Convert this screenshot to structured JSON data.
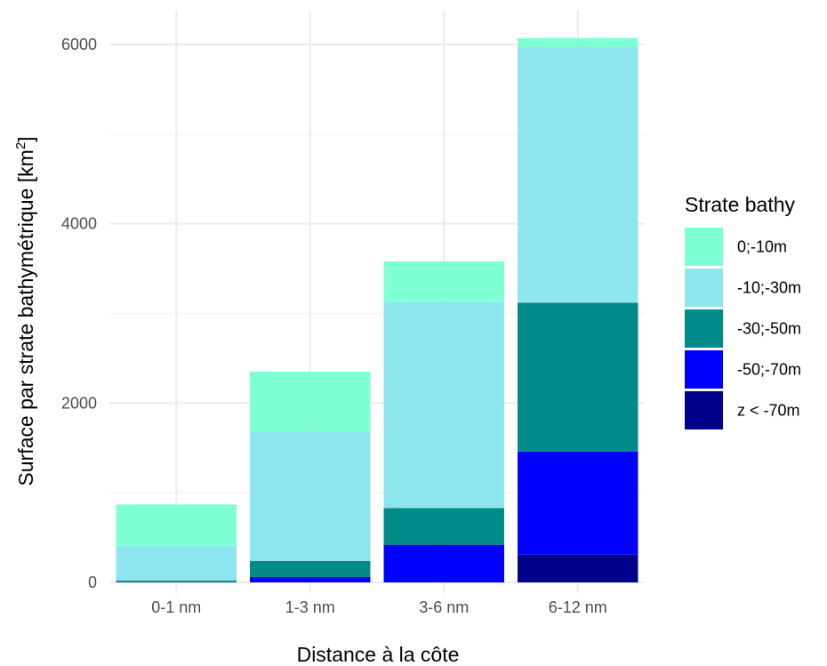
{
  "chart_data": {
    "type": "bar",
    "stacked": true,
    "categories": [
      "0-1 nm",
      "1-3 nm",
      "3-6 nm",
      "6-12 nm"
    ],
    "series": [
      {
        "name": "z < -70m",
        "color": "#00008B",
        "values": [
          0,
          0,
          0,
          310
        ]
      },
      {
        "name": "-50;-70m",
        "color": "#0000FF",
        "values": [
          0,
          60,
          420,
          1150
        ]
      },
      {
        "name": "-30;-50m",
        "color": "#008B8B",
        "values": [
          20,
          180,
          410,
          1660
        ]
      },
      {
        "name": "-10;-30m",
        "color": "#8EE5EE",
        "values": [
          390,
          1440,
          2300,
          2850
        ]
      },
      {
        "name": "0;-10m",
        "color": "#7FFFD4",
        "values": [
          460,
          670,
          450,
          100
        ]
      }
    ],
    "legend_order": [
      "0;-10m",
      "-10;-30m",
      "-30;-50m",
      "-50;-70m",
      "z < -70m"
    ],
    "title": "",
    "xlabel": "Distance à la côte",
    "ylabel_main": "Surface par strate bathymétrique [km",
    "ylabel_sup": "2",
    "ylabel_end": "]",
    "legend_title": "Strate bathy",
    "legend_position": "right",
    "yticks": [
      0,
      2000,
      4000,
      6000
    ],
    "yticklabels": [
      "0",
      "2000",
      "4000",
      "6000"
    ],
    "ylim": [
      0,
      6100
    ],
    "grid": true
  }
}
